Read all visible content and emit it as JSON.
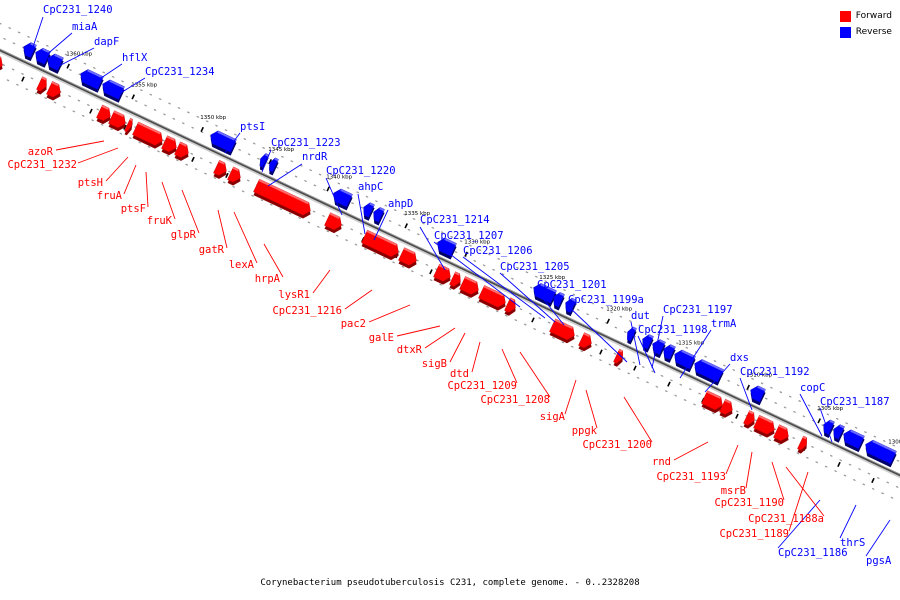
{
  "legend": {
    "forward_label": "Forward",
    "reverse_label": "Reverse",
    "forward_color": "#ff0000",
    "reverse_color": "#0000ff"
  },
  "caption": "Corynebacterium pseudotuberculosis C231, complete genome. - 0..2328208",
  "ticks": [
    "1360 kbp",
    "1355 kbp",
    "1350 kbp",
    "1345 kbp",
    "1340 kbp",
    "1335 kbp",
    "1330 kbp",
    "1325 kbp",
    "1320 kbp",
    "1315 kbp",
    "1310 kbp",
    "1305 kbp",
    "1300 kbp"
  ],
  "reverse_genes": [
    "CpC231_1240",
    "miaA",
    "dapF",
    "hflX",
    "CpC231_1234",
    "ptsI",
    "CpC231_1223",
    "nrdR",
    "CpC231_1220",
    "ahpC",
    "ahpD",
    "CpC231_1214",
    "CpC231_1207",
    "CpC231_1206",
    "CpC231_1205",
    "CpC231_1201",
    "CpC231_1199a",
    "dut",
    "CpC231_1198",
    "CpC231_1197",
    "trmA",
    "dxs",
    "CpC231_1192",
    "copC",
    "CpC231_1187",
    "thrS",
    "CpC231_1186",
    "pgsA"
  ],
  "forward_genes": [
    "azoR",
    "CpC231_1232",
    "ptsH",
    "fruA",
    "ptsF",
    "fruK",
    "glpR",
    "gatR",
    "lexA",
    "hrpA",
    "lysR1",
    "CpC231_1216",
    "pac2",
    "galE",
    "dtxR",
    "sigB",
    "dtd",
    "CpC231_1209",
    "CpC231_1208",
    "sigA",
    "ppgk",
    "CpC231_1200",
    "rnd",
    "CpC231_1193",
    "msrB",
    "CpC231_1190",
    "CpC231_1188a",
    "CpC231_1189"
  ]
}
